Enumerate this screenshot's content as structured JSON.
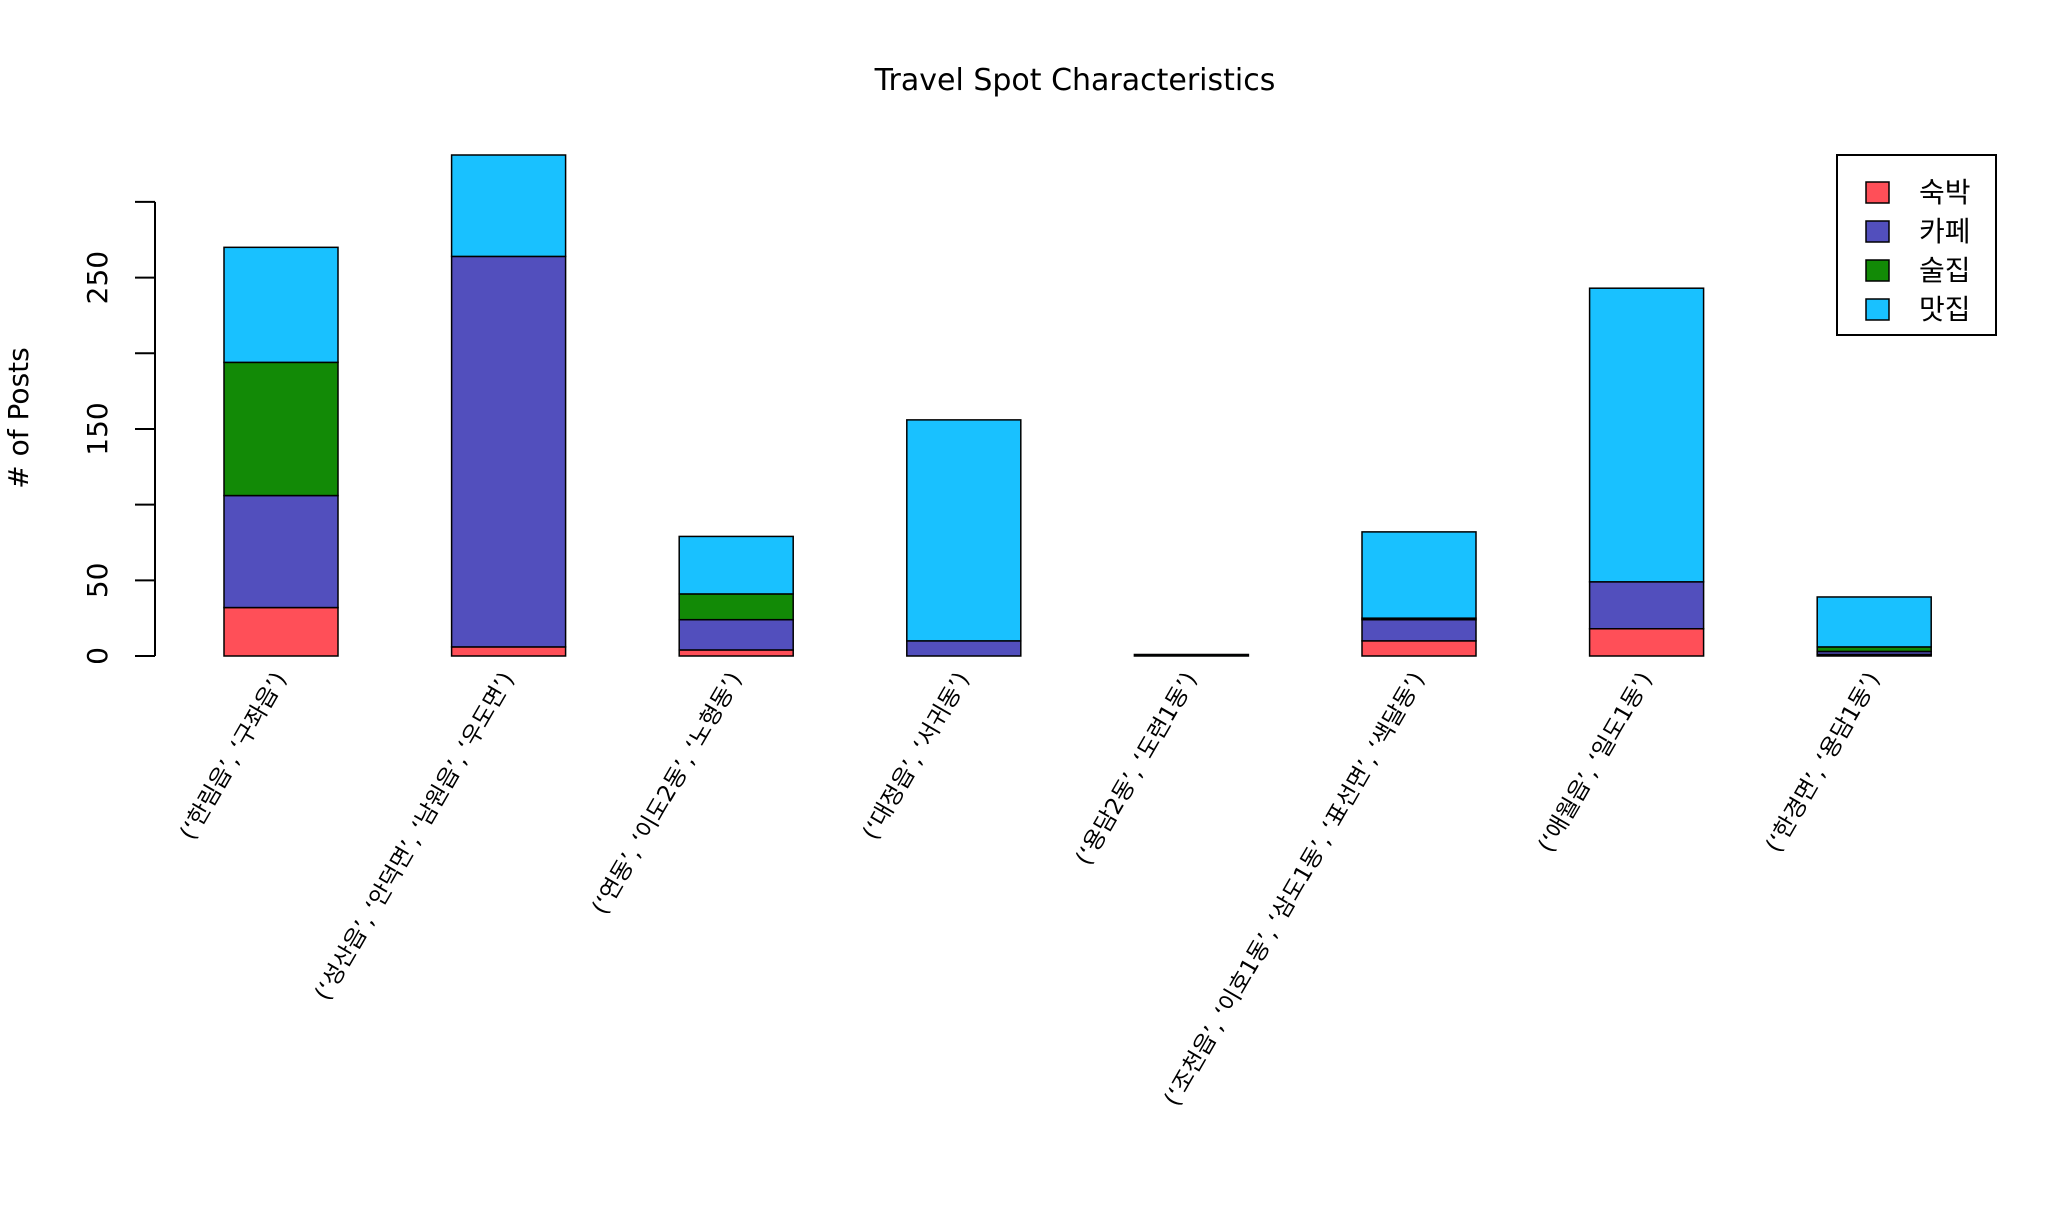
{
  "chart_data": {
    "type": "stacked_bar",
    "title": "Travel Spot Characteristics",
    "y_label": "# of Posts",
    "categories": [
      "(‘한림읍’, ‘구좌읍’)",
      "(‘성산읍’, ‘안덕면’, ‘남원읍’, ‘우도면’)",
      "(‘연동’, ‘이도2동’, ‘노형동’)",
      "(‘대정읍’, ‘서귀동’)",
      "(‘용담2동’, ‘도련1동’)",
      "(‘조천읍’, ‘이호1동’, ‘삼도1동’, ‘표선면’, ‘색달동’)",
      "(‘애월읍’, ‘일도1동’)",
      "(‘한경면’, ‘용담1동’)"
    ],
    "series": [
      {
        "name": "숙박",
        "color": "#ff4f58",
        "values": [
          32,
          6,
          4,
          0,
          0,
          10,
          18,
          1
        ]
      },
      {
        "name": "카페",
        "color": "#524fbd",
        "values": [
          74,
          258,
          20,
          10,
          0,
          14,
          31,
          2
        ]
      },
      {
        "name": "술집",
        "color": "#128a06",
        "values": [
          88,
          0,
          17,
          0,
          0,
          1,
          0,
          3
        ]
      },
      {
        "name": "맛집",
        "color": "#19c1ff",
        "values": [
          76,
          67,
          38,
          146,
          1,
          57,
          194,
          33
        ]
      }
    ],
    "ylim": [
      0,
      331
    ],
    "yticks": [
      0,
      50,
      {
        "value": 100,
        "label": null
      },
      150,
      {
        "value": 200,
        "label": null
      },
      250,
      {
        "value": 300,
        "label": null
      }
    ],
    "legend": "topright"
  }
}
